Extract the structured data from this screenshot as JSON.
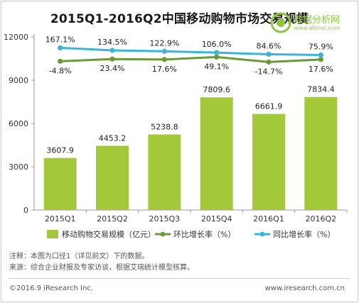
{
  "title": "2015Q1-2016Q2中国移动购物市场交易规模",
  "watermark": {
    "text": "数据分析网",
    "url": "www.afenxi.com"
  },
  "colors": {
    "bar": "#a3c93a",
    "qoq_line": "#6a9a3a",
    "yoy_line": "#3ab5d9",
    "axis": "#999999",
    "grid": "#d9d9d9"
  },
  "chart_data": {
    "type": "bar",
    "categories": [
      "2015Q1",
      "2015Q2",
      "2015Q3",
      "2015Q4",
      "2016Q1",
      "2016Q2"
    ],
    "series": [
      {
        "name": "移动购物交易规模（亿元）",
        "type": "bar",
        "values": [
          3607.9,
          4453.2,
          5238.8,
          7809.6,
          6661.9,
          7834.4
        ],
        "labels": [
          "3607.9",
          "4453.2",
          "5238.8",
          "7809.6",
          "6661.9",
          "7834.4"
        ]
      },
      {
        "name": "环比增长率（%）",
        "type": "line",
        "values": [
          -4.8,
          23.4,
          17.6,
          49.1,
          -14.7,
          17.6
        ],
        "labels": [
          "-4.8%",
          "23.4%",
          "17.6%",
          "49.1%",
          "-14.7%",
          "17.6%"
        ]
      },
      {
        "name": "同比增长率（%）",
        "type": "line",
        "values": [
          167.1,
          134.5,
          122.9,
          106.0,
          84.6,
          75.9
        ],
        "labels": [
          "167.1%",
          "134.5%",
          "122.9%",
          "106.0%",
          "84.6%",
          "75.9%"
        ]
      }
    ],
    "yticks": [
      "0",
      "3000",
      "6000",
      "9000",
      "12000"
    ],
    "ylim": [
      0,
      12000
    ],
    "grid": false,
    "legend_position": "bottom"
  },
  "notes": {
    "line1": "注释：本图为口径1（详见前文）下的数据。",
    "line2": "来源：综合企业财报及专家访谈，根据艾瑞统计模型核算。"
  },
  "footer": {
    "left": "©2016.9 iResearch Inc.",
    "right": "www.iresearch.com.cn"
  }
}
